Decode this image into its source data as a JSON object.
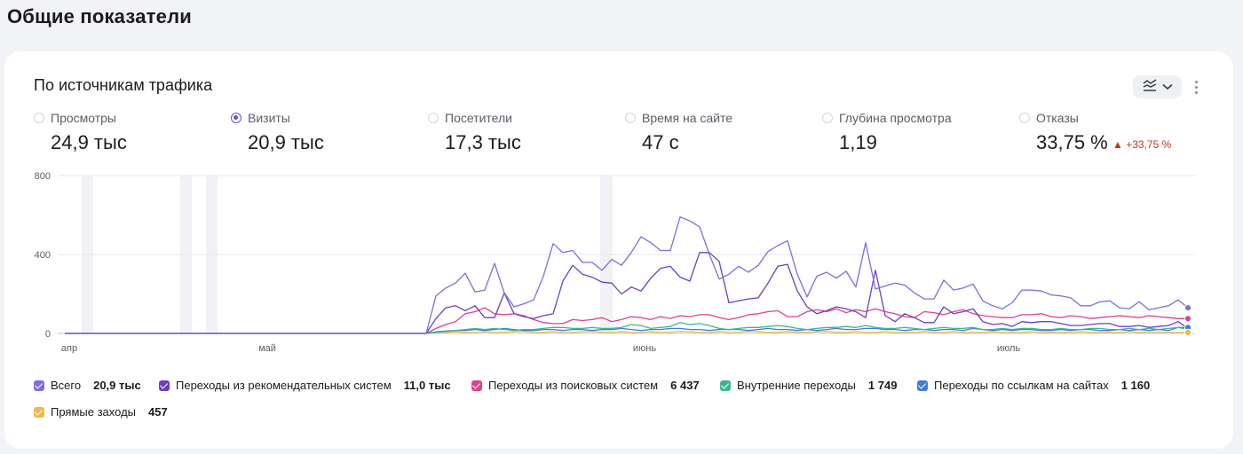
{
  "page": {
    "title": "Общие показатели"
  },
  "card": {
    "title": "По источникам трафика"
  },
  "metrics": [
    {
      "label": "Просмотры",
      "value": "24,9 тыс",
      "selected": false
    },
    {
      "label": "Визиты",
      "value": "20,9 тыс",
      "selected": true
    },
    {
      "label": "Посетители",
      "value": "17,3 тыс",
      "selected": false
    },
    {
      "label": "Время на сайте",
      "value": "47 с",
      "selected": false
    },
    {
      "label": "Глубина просмотра",
      "value": "1,19",
      "selected": false
    },
    {
      "label": "Отказы",
      "value": "33,75 %",
      "delta": "▲ +33,75 %",
      "selected": false
    }
  ],
  "icons": {
    "chart_type": "line-chart-icon",
    "dropdown": "chevron-down-icon",
    "more": "more-vertical-icon"
  },
  "chart_data": {
    "type": "line",
    "x_tick_labels": [
      "апр",
      "май",
      "июнь",
      "июль"
    ],
    "ylim": [
      0,
      800
    ],
    "y_ticks": [
      "800",
      "400",
      "0"
    ],
    "grid": true,
    "legend_placement": "bottom",
    "series": [
      {
        "name": "Всего",
        "total": "20,9 тыс",
        "color": "#7c6fe0",
        "values": [
          0,
          0,
          0,
          0,
          0,
          0,
          0,
          0,
          0,
          0,
          0,
          0,
          0,
          0,
          0,
          0,
          0,
          0,
          0,
          0,
          0,
          0,
          0,
          0,
          0,
          0,
          0,
          0,
          0,
          0,
          0,
          0,
          0,
          0,
          0,
          0,
          0,
          0,
          190,
          230,
          255,
          305,
          210,
          220,
          355,
          205,
          135,
          150,
          170,
          290,
          455,
          410,
          420,
          360,
          360,
          320,
          375,
          345,
          410,
          490,
          460,
          420,
          420,
          590,
          570,
          540,
          400,
          275,
          300,
          340,
          310,
          345,
          415,
          445,
          470,
          300,
          185,
          290,
          310,
          280,
          315,
          235,
          460,
          225,
          240,
          255,
          245,
          205,
          175,
          175,
          270,
          220,
          230,
          250,
          165,
          140,
          125,
          155,
          220,
          220,
          215,
          195,
          190,
          180,
          140,
          140,
          160,
          165,
          130,
          125,
          160,
          120,
          130,
          140,
          170,
          130
        ]
      },
      {
        "name": "Переходы из рекомендательных систем",
        "total": "11,0 тыс",
        "color": "#6a3fc6",
        "values": [
          0,
          0,
          0,
          0,
          0,
          0,
          0,
          0,
          0,
          0,
          0,
          0,
          0,
          0,
          0,
          0,
          0,
          0,
          0,
          0,
          0,
          0,
          0,
          0,
          0,
          0,
          0,
          0,
          0,
          0,
          0,
          0,
          0,
          0,
          0,
          0,
          0,
          0,
          75,
          130,
          140,
          115,
          140,
          80,
          80,
          205,
          100,
          85,
          75,
          90,
          100,
          265,
          345,
          300,
          285,
          260,
          255,
          200,
          235,
          215,
          280,
          330,
          340,
          285,
          265,
          410,
          410,
          365,
          155,
          165,
          175,
          180,
          255,
          340,
          350,
          215,
          135,
          100,
          115,
          135,
          125,
          110,
          80,
          320,
          90,
          60,
          100,
          80,
          55,
          55,
          135,
          100,
          110,
          125,
          60,
          45,
          50,
          35,
          60,
          55,
          60,
          60,
          50,
          40,
          40,
          45,
          50,
          50,
          35,
          35,
          40,
          30,
          35,
          40,
          60,
          25
        ]
      },
      {
        "name": "Переходы из поисковых систем",
        "total": "6 437",
        "color": "#e0408c",
        "values": [
          0,
          0,
          0,
          0,
          0,
          0,
          0,
          0,
          0,
          0,
          0,
          0,
          0,
          0,
          0,
          0,
          0,
          0,
          0,
          0,
          0,
          0,
          0,
          0,
          0,
          0,
          0,
          0,
          0,
          0,
          0,
          0,
          0,
          0,
          0,
          0,
          0,
          0,
          25,
          45,
          60,
          100,
          110,
          130,
          100,
          95,
          100,
          90,
          70,
          55,
          50,
          50,
          70,
          65,
          70,
          80,
          60,
          70,
          85,
          80,
          70,
          85,
          75,
          90,
          85,
          95,
          95,
          80,
          70,
          80,
          95,
          100,
          110,
          115,
          85,
          85,
          110,
          120,
          110,
          125,
          105,
          120,
          110,
          125,
          110,
          100,
          85,
          80,
          110,
          105,
          95,
          110,
          120,
          100,
          90,
          85,
          80,
          80,
          95,
          95,
          100,
          85,
          80,
          90,
          85,
          75,
          80,
          85,
          90,
          85,
          80,
          90,
          85,
          80,
          75,
          75
        ]
      },
      {
        "name": "Внутренние переходы",
        "total": "1 749",
        "color": "#3fb68e",
        "values": [
          0,
          0,
          0,
          0,
          0,
          0,
          0,
          0,
          0,
          0,
          0,
          0,
          0,
          0,
          0,
          0,
          0,
          0,
          0,
          0,
          0,
          0,
          0,
          0,
          0,
          0,
          0,
          0,
          0,
          0,
          0,
          0,
          0,
          0,
          0,
          0,
          0,
          0,
          5,
          10,
          15,
          20,
          25,
          20,
          25,
          20,
          15,
          20,
          20,
          25,
          30,
          30,
          25,
          25,
          30,
          25,
          25,
          30,
          45,
          40,
          25,
          30,
          35,
          55,
          45,
          50,
          40,
          25,
          20,
          25,
          30,
          30,
          35,
          40,
          35,
          25,
          20,
          25,
          30,
          30,
          35,
          30,
          40,
          30,
          25,
          25,
          30,
          25,
          20,
          25,
          30,
          25,
          25,
          30,
          20,
          20,
          25,
          20,
          25,
          25,
          20,
          20,
          25,
          20,
          20,
          25,
          25,
          20,
          20,
          25,
          20,
          25,
          20,
          25,
          30,
          20
        ]
      },
      {
        "name": "Переходы по ссылкам на сайтах",
        "total": "1 160",
        "color": "#3f7be0",
        "values": [
          0,
          0,
          0,
          0,
          0,
          0,
          0,
          0,
          0,
          0,
          0,
          0,
          0,
          0,
          0,
          0,
          0,
          0,
          0,
          0,
          0,
          0,
          0,
          0,
          0,
          0,
          0,
          0,
          0,
          0,
          0,
          0,
          0,
          0,
          0,
          0,
          0,
          0,
          8,
          12,
          15,
          15,
          20,
          15,
          20,
          25,
          20,
          15,
          15,
          20,
          20,
          15,
          20,
          20,
          15,
          20,
          20,
          25,
          20,
          15,
          20,
          20,
          25,
          25,
          20,
          20,
          15,
          20,
          20,
          20,
          15,
          20,
          25,
          20,
          20,
          15,
          20,
          15,
          20,
          25,
          20,
          20,
          25,
          25,
          20,
          20,
          15,
          20,
          20,
          15,
          20,
          20,
          15,
          25,
          20,
          15,
          20,
          15,
          20,
          20,
          15,
          15,
          20,
          15,
          20,
          20,
          15,
          15,
          20,
          15,
          20,
          15,
          20,
          15,
          30,
          30
        ]
      },
      {
        "name": "Прямые заходы",
        "total": "457",
        "color": "#efb94a",
        "values": [
          0,
          0,
          0,
          0,
          0,
          0,
          0,
          0,
          0,
          0,
          0,
          0,
          0,
          0,
          0,
          0,
          0,
          0,
          0,
          0,
          0,
          0,
          0,
          0,
          0,
          0,
          0,
          0,
          0,
          0,
          0,
          0,
          0,
          0,
          0,
          0,
          0,
          0,
          5,
          5,
          8,
          5,
          5,
          8,
          5,
          5,
          8,
          10,
          5,
          5,
          8,
          5,
          5,
          8,
          10,
          5,
          5,
          8,
          5,
          5,
          8,
          5,
          5,
          10,
          8,
          5,
          5,
          8,
          5,
          5,
          10,
          8,
          5,
          5,
          8,
          5,
          5,
          8,
          10,
          5,
          5,
          8,
          5,
          5,
          8,
          5,
          5,
          5,
          8,
          5,
          5,
          8,
          5,
          5,
          5,
          8,
          5,
          5,
          5,
          8,
          5,
          5,
          5,
          5,
          8,
          5,
          5,
          5,
          5,
          8,
          5,
          5,
          5,
          5,
          5,
          5
        ]
      }
    ]
  }
}
